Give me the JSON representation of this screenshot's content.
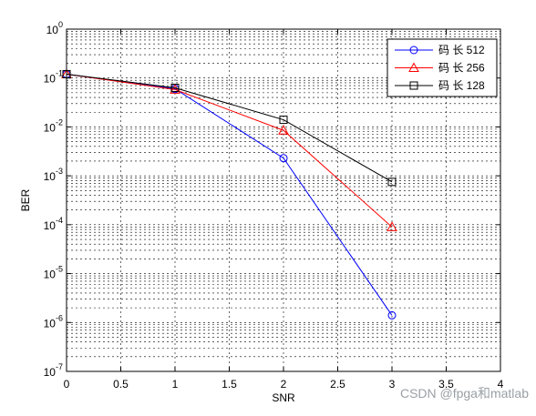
{
  "chart_data": {
    "type": "line",
    "title": "",
    "xlabel": "SNR",
    "ylabel": "BER",
    "xlim": [
      0,
      4
    ],
    "ylim": [
      1e-07,
      1
    ],
    "yscale": "log",
    "grid": true,
    "grid_style": "dashed",
    "legend_position": "top-right",
    "x_ticks": [
      "0",
      "0.5",
      "1",
      "1.5",
      "2",
      "2.5",
      "3",
      "3.5",
      "4"
    ],
    "y_ticks": [
      {
        "base": "10",
        "exp": "-7"
      },
      {
        "base": "10",
        "exp": "-6"
      },
      {
        "base": "10",
        "exp": "-5"
      },
      {
        "base": "10",
        "exp": "-4"
      },
      {
        "base": "10",
        "exp": "-3"
      },
      {
        "base": "10",
        "exp": "-2"
      },
      {
        "base": "10",
        "exp": "-1"
      },
      {
        "base": "10",
        "exp": "0"
      }
    ],
    "series": [
      {
        "name": "码 长 512",
        "color": "#0000ff",
        "marker": "circle",
        "x": [
          0,
          1,
          2,
          3
        ],
        "y": [
          0.12,
          0.06,
          0.0023,
          1.4e-06
        ]
      },
      {
        "name": "码 长 256",
        "color": "#ff0000",
        "marker": "triangle",
        "x": [
          0,
          1,
          2,
          3
        ],
        "y": [
          0.12,
          0.058,
          0.0085,
          9e-05
        ]
      },
      {
        "name": "码 长 128",
        "color": "#000000",
        "marker": "square",
        "x": [
          0,
          1,
          2,
          3
        ],
        "y": [
          0.12,
          0.063,
          0.014,
          0.00075
        ]
      }
    ]
  },
  "watermark": "CSDN @fpga和matlab"
}
